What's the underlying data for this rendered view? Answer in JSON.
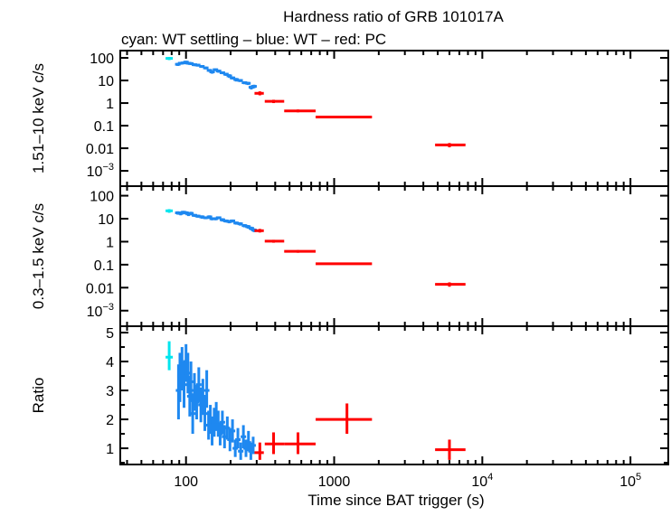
{
  "chart_data": {
    "title": "Hardness ratio of GRB 101017A",
    "subtitle": "cyan: WT settling – blue: WT – red: PC",
    "xlabel": "Time since BAT trigger (s)",
    "xscale": "log",
    "xlim": [
      36,
      180000
    ],
    "xticks": [
      {
        "v": 100,
        "label": "100"
      },
      {
        "v": 1000,
        "label": "1000"
      },
      {
        "v": 10000,
        "label": "10",
        "sup": "4"
      },
      {
        "v": 100000,
        "label": "10",
        "sup": "5"
      }
    ],
    "colors": {
      "wt_settling": "#00e5ee",
      "wt": "#1e88f0",
      "pc": "#ff0000"
    },
    "grid": false,
    "panels": [
      {
        "type": "scatter",
        "ylabel": "1.51–10 keV c/s",
        "yscale": "log",
        "ylim": [
          0.00021,
          210
        ],
        "yticks": [
          {
            "v": 100,
            "label": "100"
          },
          {
            "v": 10,
            "label": "10"
          },
          {
            "v": 1,
            "label": "1"
          },
          {
            "v": 0.1,
            "label": "0.1"
          },
          {
            "v": 0.01,
            "label": "0.01"
          },
          {
            "v": 0.001,
            "label": "10",
            "sup": "−3"
          }
        ],
        "wt_settling": [
          [
            77,
            95,
            80,
            110
          ]
        ],
        "wt": [
          [
            88,
            52,
            44,
            60
          ],
          [
            92,
            58,
            50,
            66
          ],
          [
            96,
            60,
            52,
            68
          ],
          [
            100,
            65,
            56,
            74
          ],
          [
            104,
            58,
            50,
            66
          ],
          [
            108,
            56,
            48,
            64
          ],
          [
            114,
            50,
            43,
            57
          ],
          [
            120,
            48,
            41,
            55
          ],
          [
            128,
            42,
            36,
            48
          ],
          [
            136,
            36,
            31,
            41
          ],
          [
            144,
            28,
            24,
            32
          ],
          [
            150,
            24,
            20,
            28
          ],
          [
            158,
            30,
            26,
            34
          ],
          [
            166,
            26,
            22,
            30
          ],
          [
            176,
            22,
            19,
            25
          ],
          [
            186,
            19,
            16,
            22
          ],
          [
            196,
            16,
            13,
            19
          ],
          [
            206,
            13,
            11,
            15
          ],
          [
            218,
            11,
            9,
            13
          ],
          [
            232,
            10,
            8.5,
            11.5
          ],
          [
            248,
            8,
            6.8,
            9.2
          ],
          [
            262,
            7.5,
            6.3,
            8.7
          ],
          [
            276,
            5,
            4,
            6
          ],
          [
            288,
            5.5,
            4.5,
            6.5
          ]
        ],
        "pc": [
          [
            315,
            2.7,
            290,
            335,
            2.2,
            3.3
          ],
          [
            390,
            1.2,
            340,
            460,
            1.0,
            1.4
          ],
          [
            570,
            0.45,
            460,
            750,
            0.39,
            0.52
          ],
          [
            1220,
            0.24,
            750,
            1800,
            0.22,
            0.26
          ],
          [
            6000,
            0.014,
            4800,
            7700,
            0.011,
            0.017
          ]
        ]
      },
      {
        "type": "scatter",
        "ylabel": "0.3–1.5 keV c/s",
        "yscale": "log",
        "ylim": [
          0.00021,
          260
        ],
        "yticks": [
          {
            "v": 100,
            "label": "100"
          },
          {
            "v": 10,
            "label": "10"
          },
          {
            "v": 1,
            "label": "1"
          },
          {
            "v": 0.1,
            "label": "0.1"
          },
          {
            "v": 0.01,
            "label": "0.01"
          },
          {
            "v": 0.001,
            "label": "10",
            "sup": "−3"
          }
        ],
        "wt_settling": [
          [
            77,
            22,
            18,
            26
          ]
        ],
        "wt": [
          [
            88,
            18,
            15,
            21
          ],
          [
            92,
            17,
            14,
            20
          ],
          [
            96,
            19,
            16,
            22
          ],
          [
            100,
            18,
            15,
            21
          ],
          [
            104,
            16,
            13,
            19
          ],
          [
            108,
            17,
            14,
            20
          ],
          [
            114,
            14,
            12,
            16
          ],
          [
            120,
            13,
            11,
            15
          ],
          [
            128,
            12,
            10,
            14
          ],
          [
            136,
            11,
            9.5,
            12.5
          ],
          [
            144,
            12,
            10,
            14
          ],
          [
            150,
            10,
            8.5,
            11.5
          ],
          [
            158,
            10,
            8.5,
            11.5
          ],
          [
            166,
            11,
            9.5,
            12.5
          ],
          [
            176,
            9,
            7.5,
            10.5
          ],
          [
            186,
            8,
            6.8,
            9.2
          ],
          [
            196,
            7.5,
            6.3,
            8.7
          ],
          [
            206,
            8,
            6.8,
            9.2
          ],
          [
            218,
            6.5,
            5.5,
            7.5
          ],
          [
            232,
            6,
            5,
            7
          ],
          [
            248,
            5,
            4.2,
            5.8
          ],
          [
            262,
            4.5,
            3.7,
            5.3
          ],
          [
            276,
            3.8,
            3.1,
            4.5
          ],
          [
            288,
            3.2,
            2.6,
            3.8
          ]
        ],
        "pc": [
          [
            315,
            3.0,
            290,
            335,
            2.5,
            3.6
          ],
          [
            390,
            1.05,
            340,
            460,
            0.9,
            1.2
          ],
          [
            570,
            0.38,
            460,
            750,
            0.33,
            0.43
          ],
          [
            1220,
            0.11,
            750,
            1800,
            0.1,
            0.12
          ],
          [
            6000,
            0.014,
            4800,
            7700,
            0.011,
            0.017
          ]
        ]
      },
      {
        "type": "scatter",
        "ylabel": "Ratio",
        "yscale": "linear",
        "ylim": [
          0.44,
          5.22
        ],
        "yticks": [
          {
            "v": 1,
            "label": "1"
          },
          {
            "v": 2,
            "label": "2"
          },
          {
            "v": 3,
            "label": "3"
          },
          {
            "v": 4,
            "label": "4"
          },
          {
            "v": 5,
            "label": "5"
          }
        ],
        "wt_settling": [
          [
            77,
            4.15,
            3.7,
            4.7
          ]
        ],
        "wt": [
          [
            89,
            3.0,
            2.0,
            3.9
          ],
          [
            91,
            3.5,
            2.6,
            4.3
          ],
          [
            94,
            3.8,
            3.0,
            4.5
          ],
          [
            97,
            3.2,
            2.4,
            4.0
          ],
          [
            100,
            4.0,
            3.3,
            4.6
          ],
          [
            103,
            3.6,
            2.9,
            4.3
          ],
          [
            106,
            2.8,
            2.1,
            3.5
          ],
          [
            108,
            3.3,
            2.6,
            4.0
          ],
          [
            111,
            2.2,
            1.5,
            2.9
          ],
          [
            114,
            3.0,
            2.3,
            3.6
          ],
          [
            118,
            2.6,
            2.0,
            3.2
          ],
          [
            122,
            3.2,
            2.6,
            3.8
          ],
          [
            126,
            2.5,
            1.9,
            3.1
          ],
          [
            130,
            2.8,
            2.2,
            3.4
          ],
          [
            134,
            2.2,
            1.6,
            2.8
          ],
          [
            138,
            3.0,
            2.4,
            3.7
          ],
          [
            142,
            1.8,
            1.3,
            2.3
          ],
          [
            146,
            2.0,
            1.5,
            2.5
          ],
          [
            150,
            1.6,
            1.1,
            2.1
          ],
          [
            155,
            1.9,
            1.4,
            2.4
          ],
          [
            160,
            2.1,
            1.6,
            2.6
          ],
          [
            165,
            1.8,
            1.4,
            2.3
          ],
          [
            170,
            1.5,
            1.1,
            1.9
          ],
          [
            176,
            1.9,
            1.5,
            2.3
          ],
          [
            182,
            1.4,
            1.0,
            1.8
          ],
          [
            190,
            1.7,
            1.3,
            2.1
          ],
          [
            198,
            1.3,
            0.9,
            1.7
          ],
          [
            206,
            1.6,
            1.2,
            2.0
          ],
          [
            215,
            1.0,
            0.7,
            1.3
          ],
          [
            224,
            1.3,
            1.0,
            1.7
          ],
          [
            234,
            0.9,
            0.6,
            1.2
          ],
          [
            244,
            1.4,
            1.0,
            1.8
          ],
          [
            254,
            1.0,
            0.7,
            1.3
          ],
          [
            264,
            1.2,
            0.9,
            1.6
          ],
          [
            274,
            0.9,
            0.6,
            1.2
          ],
          [
            284,
            1.1,
            0.8,
            1.4
          ]
        ],
        "pc": [
          [
            315,
            0.85,
            290,
            335,
            0.6,
            1.2
          ],
          [
            390,
            1.15,
            340,
            460,
            0.8,
            1.55
          ],
          [
            570,
            1.15,
            460,
            750,
            0.8,
            1.55
          ],
          [
            1220,
            2.0,
            750,
            1800,
            1.5,
            2.55
          ],
          [
            6000,
            0.95,
            4800,
            7700,
            0.6,
            1.3
          ]
        ]
      }
    ]
  }
}
